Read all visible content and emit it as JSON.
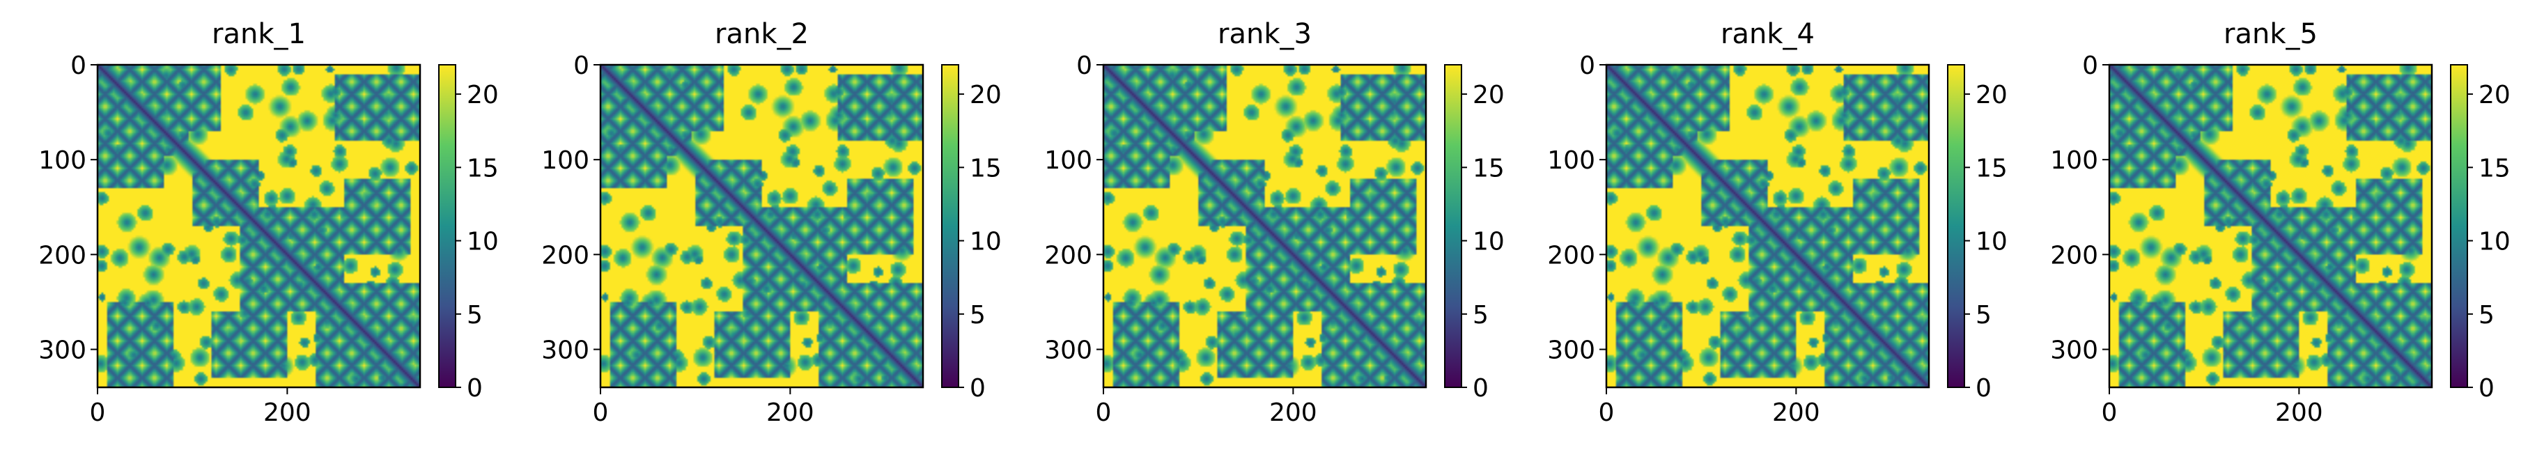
{
  "figure": {
    "panel_count": 5
  },
  "chart_data": [
    {
      "type": "heatmap",
      "title": "rank_1",
      "xlabel": "",
      "ylabel": "",
      "x_ticks": [
        0,
        200
      ],
      "y_ticks": [
        0,
        100,
        200,
        300
      ],
      "xlim": [
        0,
        340
      ],
      "ylim": [
        340,
        0
      ],
      "colorbar": {
        "ticks": [
          0,
          5,
          10,
          15,
          20
        ],
        "range": [
          0,
          22
        ],
        "colormap": "viridis"
      },
      "values_description": "predicted distance map; diagonal and contact patterns low, background saturated near 22"
    },
    {
      "type": "heatmap",
      "title": "rank_2",
      "xlabel": "",
      "ylabel": "",
      "x_ticks": [
        0,
        200
      ],
      "y_ticks": [
        0,
        100,
        200,
        300
      ],
      "xlim": [
        0,
        340
      ],
      "ylim": [
        340,
        0
      ],
      "colorbar": {
        "ticks": [
          0,
          5,
          10,
          15,
          20
        ],
        "range": [
          0,
          22
        ],
        "colormap": "viridis"
      }
    },
    {
      "type": "heatmap",
      "title": "rank_3",
      "xlabel": "",
      "ylabel": "",
      "x_ticks": [
        0,
        200
      ],
      "y_ticks": [
        0,
        100,
        200,
        300
      ],
      "xlim": [
        0,
        340
      ],
      "ylim": [
        340,
        0
      ],
      "colorbar": {
        "ticks": [
          0,
          5,
          10,
          15,
          20
        ],
        "range": [
          0,
          22
        ],
        "colormap": "viridis"
      }
    },
    {
      "type": "heatmap",
      "title": "rank_4",
      "xlabel": "",
      "ylabel": "",
      "x_ticks": [
        0,
        200
      ],
      "y_ticks": [
        0,
        100,
        200,
        300
      ],
      "xlim": [
        0,
        340
      ],
      "ylim": [
        340,
        0
      ],
      "colorbar": {
        "ticks": [
          0,
          5,
          10,
          15,
          20
        ],
        "range": [
          0,
          22
        ],
        "colormap": "viridis"
      }
    },
    {
      "type": "heatmap",
      "title": "rank_5",
      "xlabel": "",
      "ylabel": "",
      "x_ticks": [
        0,
        200
      ],
      "y_ticks": [
        0,
        100,
        200,
        300
      ],
      "xlim": [
        0,
        340
      ],
      "ylim": [
        340,
        0
      ],
      "colorbar": {
        "ticks": [
          0,
          5,
          10,
          15,
          20
        ],
        "range": [
          0,
          22
        ],
        "colormap": "viridis"
      }
    }
  ],
  "colors": {
    "viridis_low": "#440154",
    "viridis_q1": "#3b528b",
    "viridis_mid": "#21918c",
    "viridis_q3": "#5ec962",
    "viridis_high": "#fde725"
  }
}
